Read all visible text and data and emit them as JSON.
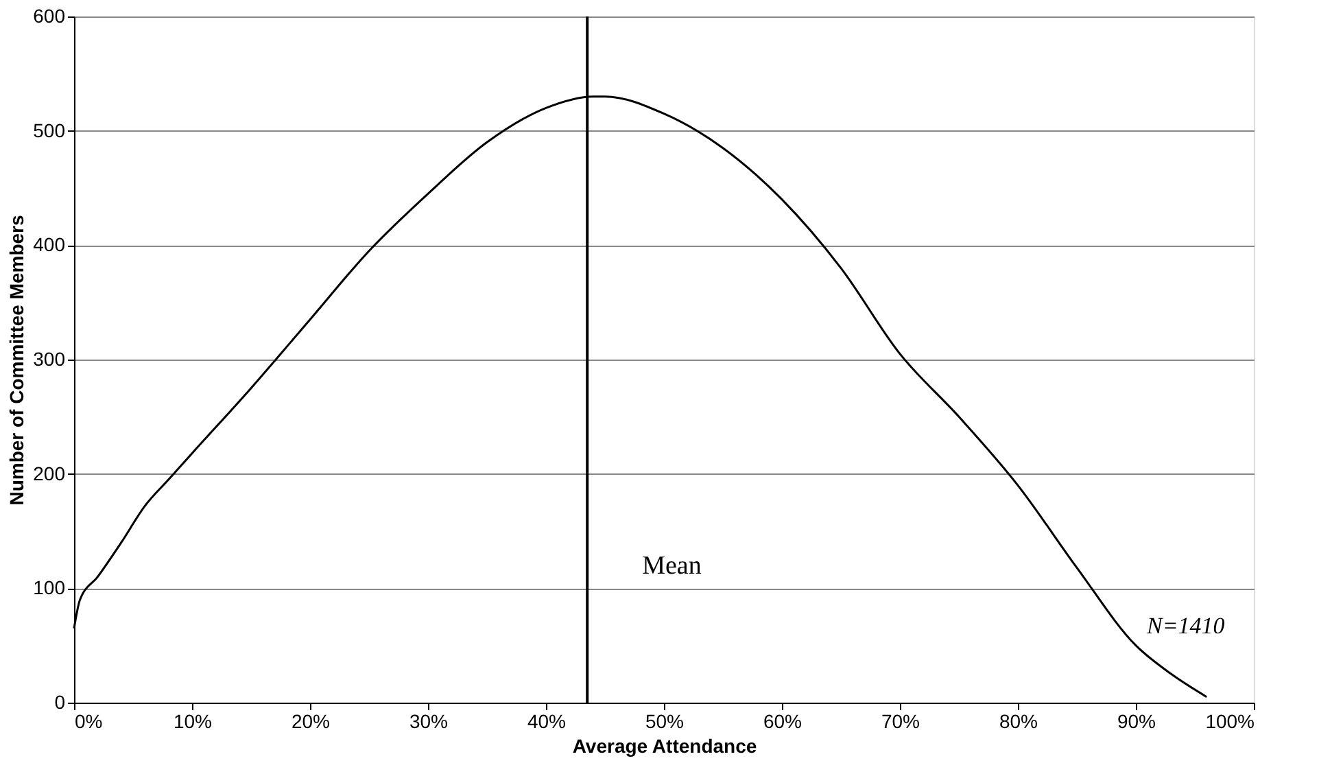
{
  "chart_data": {
    "type": "line",
    "xlabel": "Average Attendance",
    "ylabel": "Number of Committee Members",
    "x": [
      0,
      0.5,
      2,
      4,
      6,
      8,
      10,
      15,
      20,
      25,
      30,
      35,
      40,
      44,
      45,
      50,
      55,
      60,
      65,
      70,
      75,
      80,
      85,
      90,
      93,
      96
    ],
    "series": [
      {
        "color": "#000000",
        "values": [
          65,
          90,
          110,
          140,
          172,
          195,
          218,
          275,
          335,
          395,
          445,
          490,
          520,
          530,
          530,
          515,
          485,
          440,
          380,
          305,
          250,
          190,
          118,
          50,
          25,
          5
        ]
      }
    ],
    "xlim": [
      0,
      100
    ],
    "ylim": [
      0,
      600
    ],
    "xticks": [
      {
        "value": 0,
        "label": "0%"
      },
      {
        "value": 10,
        "label": "10%"
      },
      {
        "value": 20,
        "label": "20%"
      },
      {
        "value": 30,
        "label": "30%"
      },
      {
        "value": 40,
        "label": "40%"
      },
      {
        "value": 50,
        "label": "50%"
      },
      {
        "value": 60,
        "label": "60%"
      },
      {
        "value": 70,
        "label": "70%"
      },
      {
        "value": 80,
        "label": "80%"
      },
      {
        "value": 90,
        "label": "90%"
      },
      {
        "value": 100,
        "label": "100%"
      }
    ],
    "yticks": [
      0,
      100,
      200,
      300,
      400,
      500,
      600
    ],
    "grid": "y",
    "marker": "none",
    "line_style": "solid",
    "ref_lines": [
      {
        "axis": "x",
        "value": 43.5,
        "label": "Mean",
        "color": "#000000"
      }
    ],
    "annotations": [
      {
        "text": "N=1410",
        "x": 90,
        "y": 50
      }
    ]
  }
}
